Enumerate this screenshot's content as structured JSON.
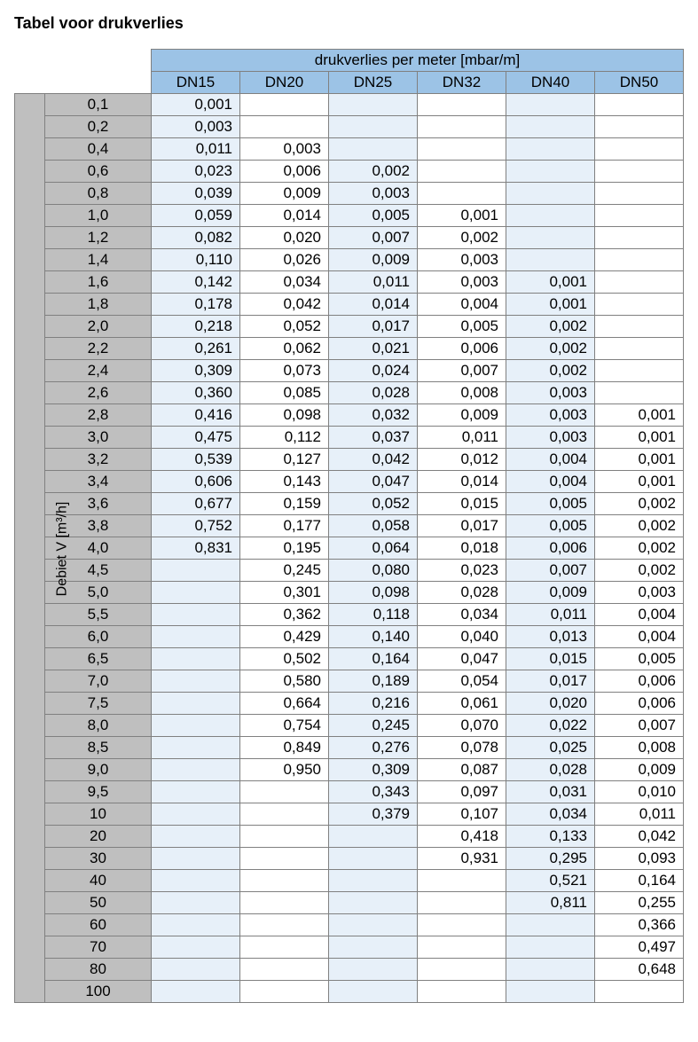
{
  "title": "Tabel voor drukverlies",
  "header_main": "drukverlies per meter [mbar/m]",
  "side_label": "Debiet V [m³/h]",
  "columns": [
    "DN15",
    "DN20",
    "DN25",
    "DN32",
    "DN40",
    "DN50"
  ],
  "zebraColors": {
    "blue": "#e7f0f9",
    "white": "#ffffff"
  },
  "rows": [
    {
      "v": "0,1",
      "cells": [
        "0,001",
        "",
        "",
        "",
        "",
        ""
      ]
    },
    {
      "v": "0,2",
      "cells": [
        "0,003",
        "",
        "",
        "",
        "",
        ""
      ]
    },
    {
      "v": "0,4",
      "cells": [
        "0,011",
        "0,003",
        "",
        "",
        "",
        ""
      ]
    },
    {
      "v": "0,6",
      "cells": [
        "0,023",
        "0,006",
        "0,002",
        "",
        "",
        ""
      ]
    },
    {
      "v": "0,8",
      "cells": [
        "0,039",
        "0,009",
        "0,003",
        "",
        "",
        ""
      ]
    },
    {
      "v": "1,0",
      "cells": [
        "0,059",
        "0,014",
        "0,005",
        "0,001",
        "",
        ""
      ]
    },
    {
      "v": "1,2",
      "cells": [
        "0,082",
        "0,020",
        "0,007",
        "0,002",
        "",
        ""
      ]
    },
    {
      "v": "1,4",
      "cells": [
        "0,110",
        "0,026",
        "0,009",
        "0,003",
        "",
        ""
      ]
    },
    {
      "v": "1,6",
      "cells": [
        "0,142",
        "0,034",
        "0,011",
        "0,003",
        "0,001",
        ""
      ]
    },
    {
      "v": "1,8",
      "cells": [
        "0,178",
        "0,042",
        "0,014",
        "0,004",
        "0,001",
        ""
      ]
    },
    {
      "v": "2,0",
      "cells": [
        "0,218",
        "0,052",
        "0,017",
        "0,005",
        "0,002",
        ""
      ]
    },
    {
      "v": "2,2",
      "cells": [
        "0,261",
        "0,062",
        "0,021",
        "0,006",
        "0,002",
        ""
      ]
    },
    {
      "v": "2,4",
      "cells": [
        "0,309",
        "0,073",
        "0,024",
        "0,007",
        "0,002",
        ""
      ]
    },
    {
      "v": "2,6",
      "cells": [
        "0,360",
        "0,085",
        "0,028",
        "0,008",
        "0,003",
        ""
      ]
    },
    {
      "v": "2,8",
      "cells": [
        "0,416",
        "0,098",
        "0,032",
        "0,009",
        "0,003",
        "0,001"
      ]
    },
    {
      "v": "3,0",
      "cells": [
        "0,475",
        "0,112",
        "0,037",
        "0,011",
        "0,003",
        "0,001"
      ]
    },
    {
      "v": "3,2",
      "cells": [
        "0,539",
        "0,127",
        "0,042",
        "0,012",
        "0,004",
        "0,001"
      ]
    },
    {
      "v": "3,4",
      "cells": [
        "0,606",
        "0,143",
        "0,047",
        "0,014",
        "0,004",
        "0,001"
      ]
    },
    {
      "v": "3,6",
      "cells": [
        "0,677",
        "0,159",
        "0,052",
        "0,015",
        "0,005",
        "0,002"
      ]
    },
    {
      "v": "3,8",
      "cells": [
        "0,752",
        "0,177",
        "0,058",
        "0,017",
        "0,005",
        "0,002"
      ]
    },
    {
      "v": "4,0",
      "cells": [
        "0,831",
        "0,195",
        "0,064",
        "0,018",
        "0,006",
        "0,002"
      ]
    },
    {
      "v": "4,5",
      "cells": [
        "",
        "0,245",
        "0,080",
        "0,023",
        "0,007",
        "0,002"
      ]
    },
    {
      "v": "5,0",
      "cells": [
        "",
        "0,301",
        "0,098",
        "0,028",
        "0,009",
        "0,003"
      ]
    },
    {
      "v": "5,5",
      "cells": [
        "",
        "0,362",
        "0,118",
        "0,034",
        "0,011",
        "0,004"
      ]
    },
    {
      "v": "6,0",
      "cells": [
        "",
        "0,429",
        "0,140",
        "0,040",
        "0,013",
        "0,004"
      ]
    },
    {
      "v": "6,5",
      "cells": [
        "",
        "0,502",
        "0,164",
        "0,047",
        "0,015",
        "0,005"
      ]
    },
    {
      "v": "7,0",
      "cells": [
        "",
        "0,580",
        "0,189",
        "0,054",
        "0,017",
        "0,006"
      ]
    },
    {
      "v": "7,5",
      "cells": [
        "",
        "0,664",
        "0,216",
        "0,061",
        "0,020",
        "0,006"
      ]
    },
    {
      "v": "8,0",
      "cells": [
        "",
        "0,754",
        "0,245",
        "0,070",
        "0,022",
        "0,007"
      ]
    },
    {
      "v": "8,5",
      "cells": [
        "",
        "0,849",
        "0,276",
        "0,078",
        "0,025",
        "0,008"
      ]
    },
    {
      "v": "9,0",
      "cells": [
        "",
        "0,950",
        "0,309",
        "0,087",
        "0,028",
        "0,009"
      ]
    },
    {
      "v": "9,5",
      "cells": [
        "",
        "",
        "0,343",
        "0,097",
        "0,031",
        "0,010"
      ]
    },
    {
      "v": "10",
      "cells": [
        "",
        "",
        "0,379",
        "0,107",
        "0,034",
        "0,011"
      ]
    },
    {
      "v": "20",
      "cells": [
        "",
        "",
        "",
        "0,418",
        "0,133",
        "0,042"
      ]
    },
    {
      "v": "30",
      "cells": [
        "",
        "",
        "",
        "0,931",
        "0,295",
        "0,093"
      ]
    },
    {
      "v": "40",
      "cells": [
        "",
        "",
        "",
        "",
        "0,521",
        "0,164"
      ]
    },
    {
      "v": "50",
      "cells": [
        "",
        "",
        "",
        "",
        "0,811",
        "0,255"
      ]
    },
    {
      "v": "60",
      "cells": [
        "",
        "",
        "",
        "",
        "",
        "0,366"
      ]
    },
    {
      "v": "70",
      "cells": [
        "",
        "",
        "",
        "",
        "",
        "0,497"
      ]
    },
    {
      "v": "80",
      "cells": [
        "",
        "",
        "",
        "",
        "",
        "0,648"
      ]
    },
    {
      "v": "100",
      "cells": [
        "",
        "",
        "",
        "",
        "",
        ""
      ]
    }
  ]
}
